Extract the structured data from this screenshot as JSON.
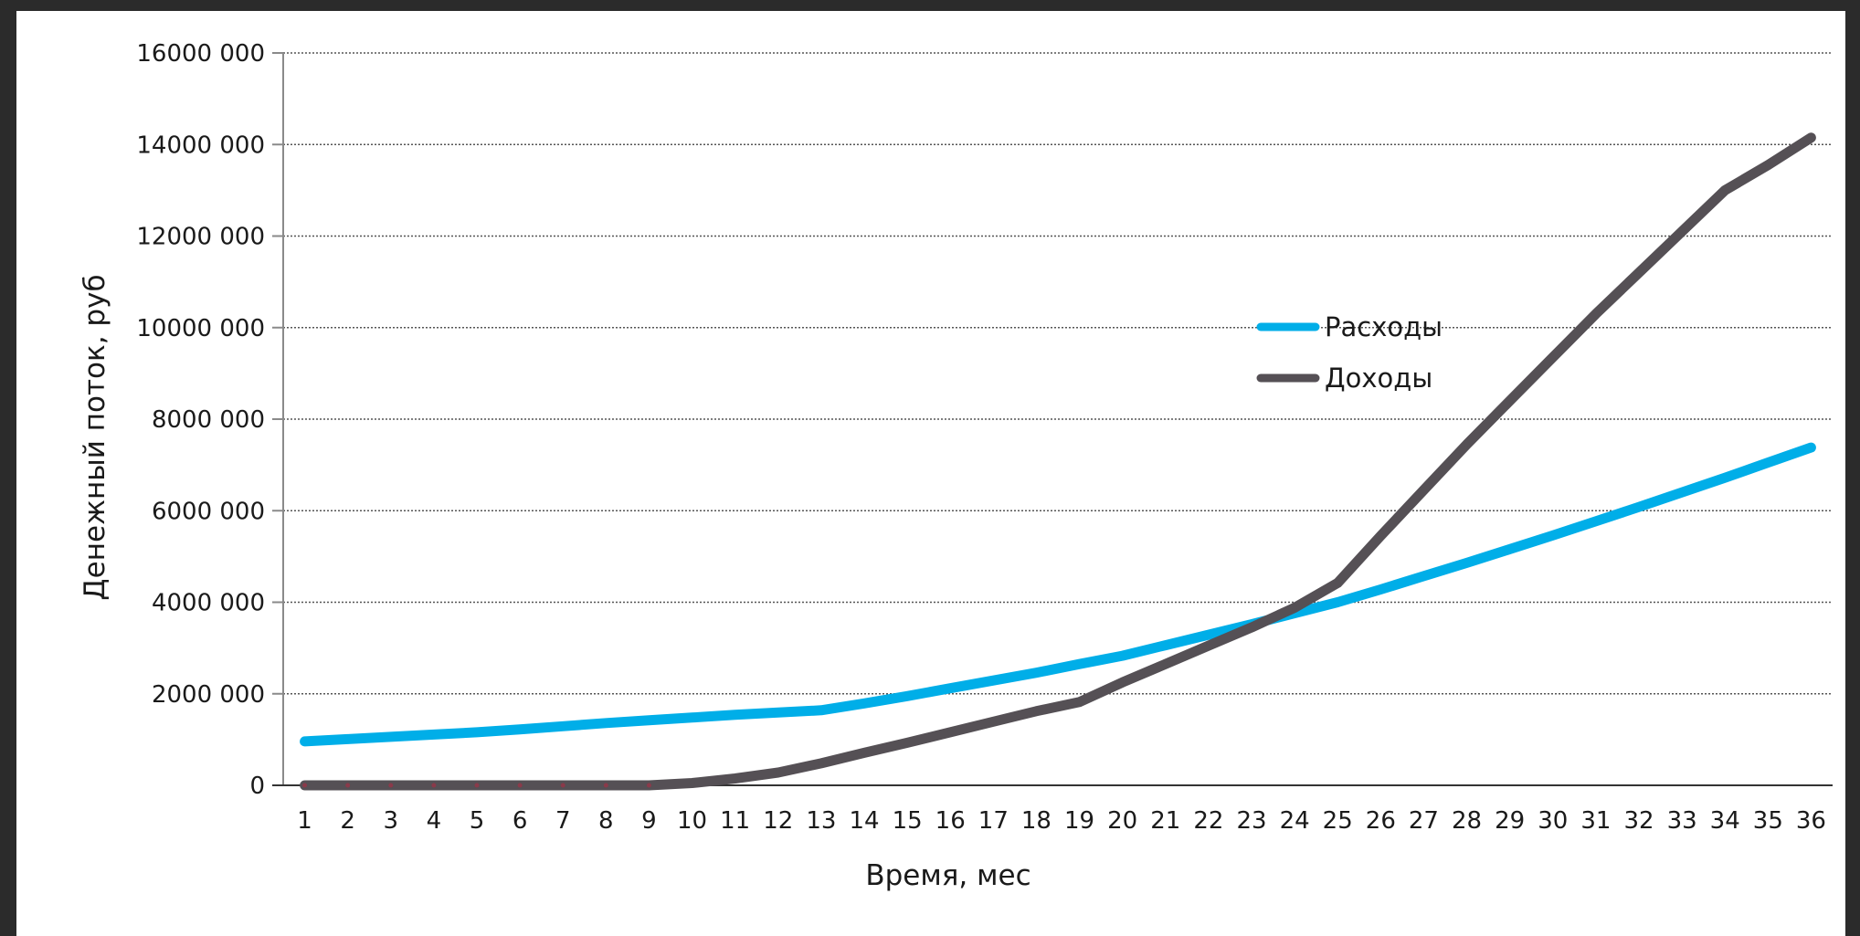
{
  "chart_data": {
    "type": "line",
    "xlabel": "Время, мес",
    "ylabel": "Денежный поток, руб",
    "x": [
      1,
      2,
      3,
      4,
      5,
      6,
      7,
      8,
      9,
      10,
      11,
      12,
      13,
      14,
      15,
      16,
      17,
      18,
      19,
      20,
      21,
      22,
      23,
      24,
      25,
      26,
      27,
      28,
      29,
      30,
      31,
      32,
      33,
      34,
      35,
      36
    ],
    "ylim": [
      0,
      16000000
    ],
    "yticks": [
      0,
      2000000,
      4000000,
      6000000,
      8000000,
      10000000,
      12000000,
      14000000,
      16000000
    ],
    "ytick_labels": [
      "0",
      "2000 000",
      "4000 000",
      "6000 000",
      "8000 000",
      "10000 000",
      "12000 000",
      "14000 000",
      "16000 000"
    ],
    "grid": true,
    "legend_position": "center-right",
    "series": [
      {
        "name": "Расходы",
        "color": "#00aee8",
        "values": [
          960000,
          1010000,
          1060000,
          1110000,
          1160000,
          1220000,
          1290000,
          1360000,
          1420000,
          1480000,
          1540000,
          1590000,
          1640000,
          1790000,
          1950000,
          2120000,
          2290000,
          2460000,
          2650000,
          2830000,
          3060000,
          3290000,
          3520000,
          3760000,
          4000000,
          4280000,
          4570000,
          4860000,
          5160000,
          5460000,
          5770000,
          6080000,
          6400000,
          6720000,
          7050000,
          7380000
        ]
      },
      {
        "name": "Доходы",
        "color": "#555055",
        "values": [
          0,
          0,
          0,
          0,
          0,
          0,
          0,
          0,
          0,
          50000,
          150000,
          280000,
          480000,
          710000,
          930000,
          1160000,
          1390000,
          1620000,
          1820000,
          2250000,
          2650000,
          3050000,
          3450000,
          3880000,
          4420000,
          5450000,
          6450000,
          7450000,
          8400000,
          9350000,
          10300000,
          11200000,
          12100000,
          13000000,
          13550000,
          14150000
        ]
      }
    ]
  }
}
